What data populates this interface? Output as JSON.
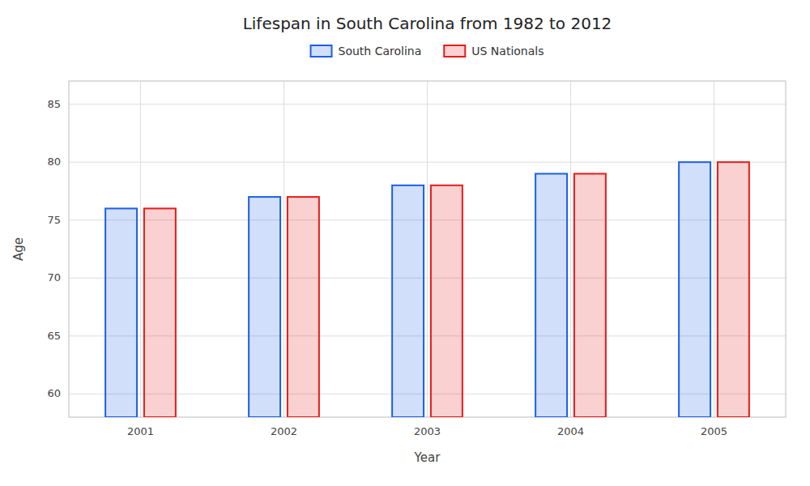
{
  "chart_data": {
    "type": "bar",
    "title": "Lifespan in South Carolina from 1982 to 2012",
    "x_label": "Year",
    "y_label": "Age",
    "categories": [
      "2001",
      "2002",
      "2003",
      "2004",
      "2005"
    ],
    "series": [
      {
        "name": "South Carolina",
        "color": "#1a5fe8",
        "values": [
          76,
          77,
          78,
          79,
          80
        ]
      },
      {
        "name": "US Nationals",
        "color": "#e81a1a",
        "values": [
          76,
          77,
          78,
          79,
          80
        ]
      }
    ],
    "ylim": [
      58,
      87
    ],
    "yticks": [
      60,
      65,
      70,
      75,
      80,
      85
    ],
    "grid": true,
    "legend": "top"
  }
}
